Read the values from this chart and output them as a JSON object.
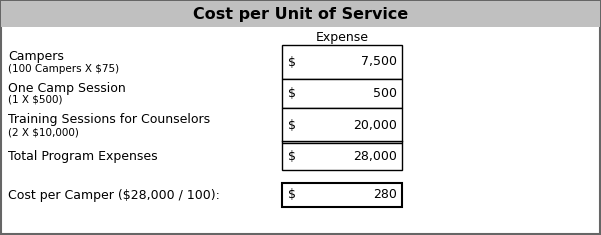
{
  "title": "Cost per Unit of Service",
  "title_bg": "#c0c0c0",
  "title_fontsize": 11.5,
  "header_label": "Expense",
  "rows": [
    {
      "label_main": "Campers",
      "label_sub": "(100 Campers X $75)",
      "dollar": "$",
      "value": "7,500"
    },
    {
      "label_main": "One Camp Session",
      "label_sub": "(1 X $500)",
      "dollar": "$",
      "value": "500"
    },
    {
      "label_main": "Training Sessions for Counselors",
      "label_sub": "(2 X $10,000)",
      "dollar": "$",
      "value": "20,000"
    },
    {
      "label_main": "Total Program Expenses",
      "label_sub": "",
      "dollar": "$",
      "value": "28,000"
    }
  ],
  "summary_label": "Cost per Camper ($28,000 / 100):",
  "summary_dollar": "$",
  "summary_value": "280",
  "outer_border_color": "#666666",
  "cell_border_color": "#000000",
  "bg_color": "#ffffff",
  "text_color": "#000000",
  "main_label_fontsize": 9.0,
  "sub_label_fontsize": 7.5,
  "value_fontsize": 9.0,
  "fig_width": 6.01,
  "fig_height": 2.35,
  "dpi": 100
}
